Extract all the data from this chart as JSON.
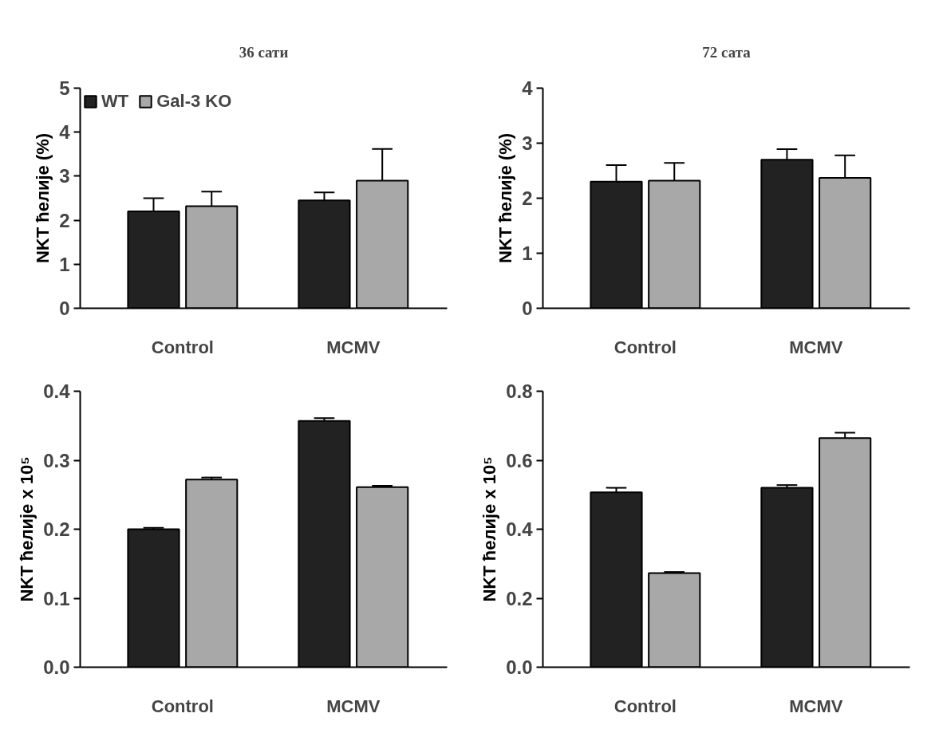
{
  "chart_data": [
    {
      "type": "bar",
      "title": "36 сати",
      "ylabel": "NKT ћелије (%)",
      "categories": [
        "Control",
        "MCMV"
      ],
      "legend": "top left",
      "grid": false,
      "ylim": [
        0,
        5
      ],
      "yticks": [
        0,
        1,
        2,
        3,
        4,
        5
      ],
      "series": [
        {
          "name": "WT",
          "color": "#222222",
          "values": [
            2.2,
            2.45
          ],
          "errors": [
            [
              2.2,
              2.5
            ],
            [
              2.45,
              2.63
            ]
          ]
        },
        {
          "name": "Gal-3 KO",
          "color": "#a8a8a8",
          "values": [
            2.32,
            2.9
          ],
          "errors": [
            [
              2.32,
              2.65
            ],
            [
              2.9,
              3.62
            ]
          ]
        }
      ]
    },
    {
      "type": "bar",
      "title": "72 сата",
      "ylabel": "NKT ћелије (%)",
      "categories": [
        "Control",
        "MCMV"
      ],
      "grid": false,
      "ylim": [
        0,
        4
      ],
      "yticks": [
        0,
        1,
        2,
        3,
        4
      ],
      "series": [
        {
          "color": "#222222",
          "values": [
            2.3,
            2.7
          ],
          "errors": [
            [
              2.3,
              2.6
            ],
            [
              2.7,
              2.89
            ]
          ]
        },
        {
          "color": "#a8a8a8",
          "values": [
            2.32,
            2.37
          ],
          "errors": [
            [
              2.32,
              2.64
            ],
            [
              2.37,
              2.78
            ]
          ]
        }
      ]
    },
    {
      "type": "bar",
      "ylabel": "NKT ћелије x 10⁵",
      "categories": [
        "Control",
        "MCMV"
      ],
      "grid": false,
      "ylim": [
        0,
        0.4
      ],
      "yticks": [
        {
          "value": 0,
          "label": "0.0"
        },
        0.1,
        0.2,
        0.3,
        0.4
      ],
      "series": [
        {
          "color": "#222222",
          "values": [
            0.2,
            0.357
          ],
          "errors": [
            [
              0.2,
              0.202
            ],
            [
              0.357,
              0.361
            ]
          ]
        },
        {
          "color": "#a8a8a8",
          "values": [
            0.272,
            0.261
          ],
          "errors": [
            [
              0.272,
              0.275
            ],
            [
              0.261,
              0.263
            ]
          ]
        }
      ]
    },
    {
      "type": "bar",
      "ylabel": "NKT ћелије x 10⁵",
      "categories": [
        "Control",
        "MCMV"
      ],
      "grid": false,
      "ylim": [
        0,
        0.8
      ],
      "yticks": [
        {
          "value": 0,
          "label": "0.0"
        },
        0.2,
        0.4,
        0.6,
        0.8
      ],
      "series": [
        {
          "color": "#222222",
          "values": [
            0.507,
            0.52
          ],
          "errors": [
            [
              0.507,
              0.52
            ],
            [
              0.52,
              0.528
            ]
          ]
        },
        {
          "color": "#a8a8a8",
          "values": [
            0.273,
            0.664
          ],
          "errors": [
            [
              0.273,
              0.276
            ],
            [
              0.664,
              0.68
            ]
          ]
        }
      ]
    }
  ]
}
